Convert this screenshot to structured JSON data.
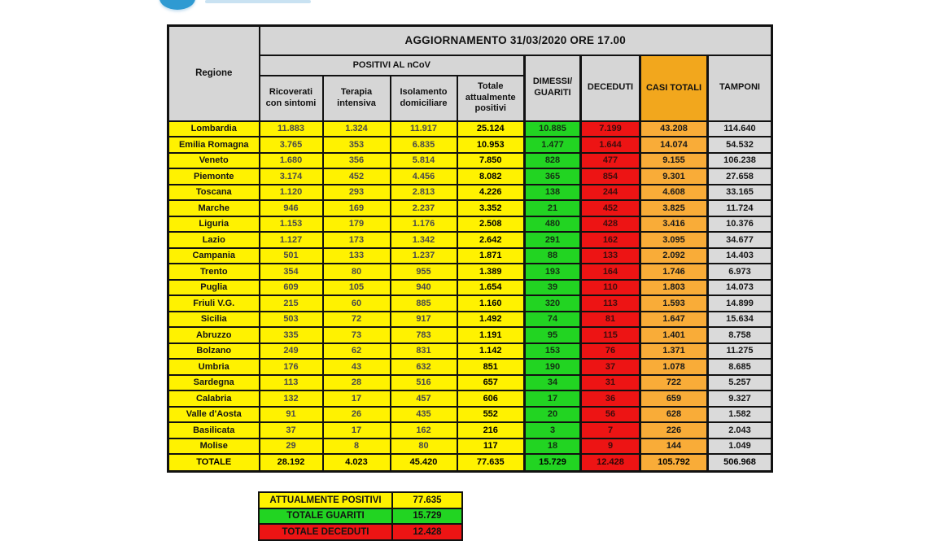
{
  "page": {
    "logo_icon": "blue-circle-logo-cropped"
  },
  "colors": {
    "yellow": "#FFF200",
    "green": "#22D422",
    "red": "#ED1414",
    "orange_header": "#F2A71D",
    "orange_cell": "#F9AC38",
    "header_gray": "#D6D6D6",
    "tamponi_gray": "#DADADA",
    "border": "#111111",
    "logo_blue": "#2F9AD2",
    "background": "#FFFFFF"
  },
  "chart_data": {
    "type": "table",
    "title": "AGGIORNAMENTO 31/03/2020 ORE 17.00",
    "region_header": "Regione",
    "group_header": "POSITIVI AL nCoV",
    "columns": [
      "Ricoverati con sintomi",
      "Terapia intensiva",
      "Isolamento domiciliare",
      "Totale attualmente positivi",
      "DIMESSI/ GUARITI",
      "DECEDUTI",
      "CASI TOTALI",
      "TAMPONI"
    ],
    "rows": [
      {
        "region": "Lombardia",
        "values": [
          "11.883",
          "1.324",
          "11.917",
          "25.124",
          "10.885",
          "7.199",
          "43.208",
          "114.640"
        ]
      },
      {
        "region": "Emilia Romagna",
        "values": [
          "3.765",
          "353",
          "6.835",
          "10.953",
          "1.477",
          "1.644",
          "14.074",
          "54.532"
        ]
      },
      {
        "region": "Veneto",
        "values": [
          "1.680",
          "356",
          "5.814",
          "7.850",
          "828",
          "477",
          "9.155",
          "106.238"
        ]
      },
      {
        "region": "Piemonte",
        "values": [
          "3.174",
          "452",
          "4.456",
          "8.082",
          "365",
          "854",
          "9.301",
          "27.658"
        ]
      },
      {
        "region": "Toscana",
        "values": [
          "1.120",
          "293",
          "2.813",
          "4.226",
          "138",
          "244",
          "4.608",
          "33.165"
        ]
      },
      {
        "region": "Marche",
        "values": [
          "946",
          "169",
          "2.237",
          "3.352",
          "21",
          "452",
          "3.825",
          "11.724"
        ]
      },
      {
        "region": "Liguria",
        "values": [
          "1.153",
          "179",
          "1.176",
          "2.508",
          "480",
          "428",
          "3.416",
          "10.376"
        ]
      },
      {
        "region": "Lazio",
        "values": [
          "1.127",
          "173",
          "1.342",
          "2.642",
          "291",
          "162",
          "3.095",
          "34.677"
        ]
      },
      {
        "region": "Campania",
        "values": [
          "501",
          "133",
          "1.237",
          "1.871",
          "88",
          "133",
          "2.092",
          "14.403"
        ]
      },
      {
        "region": "Trento",
        "values": [
          "354",
          "80",
          "955",
          "1.389",
          "193",
          "164",
          "1.746",
          "6.973"
        ]
      },
      {
        "region": "Puglia",
        "values": [
          "609",
          "105",
          "940",
          "1.654",
          "39",
          "110",
          "1.803",
          "14.073"
        ]
      },
      {
        "region": "Friuli V.G.",
        "values": [
          "215",
          "60",
          "885",
          "1.160",
          "320",
          "113",
          "1.593",
          "14.899"
        ]
      },
      {
        "region": "Sicilia",
        "values": [
          "503",
          "72",
          "917",
          "1.492",
          "74",
          "81",
          "1.647",
          "15.634"
        ]
      },
      {
        "region": "Abruzzo",
        "values": [
          "335",
          "73",
          "783",
          "1.191",
          "95",
          "115",
          "1.401",
          "8.758"
        ]
      },
      {
        "region": "Bolzano",
        "values": [
          "249",
          "62",
          "831",
          "1.142",
          "153",
          "76",
          "1.371",
          "11.275"
        ]
      },
      {
        "region": "Umbria",
        "values": [
          "176",
          "43",
          "632",
          "851",
          "190",
          "37",
          "1.078",
          "8.685"
        ]
      },
      {
        "region": "Sardegna",
        "values": [
          "113",
          "28",
          "516",
          "657",
          "34",
          "31",
          "722",
          "5.257"
        ]
      },
      {
        "region": "Calabria",
        "values": [
          "132",
          "17",
          "457",
          "606",
          "17",
          "36",
          "659",
          "9.327"
        ]
      },
      {
        "region": "Valle d'Aosta",
        "values": [
          "91",
          "26",
          "435",
          "552",
          "20",
          "56",
          "628",
          "1.582"
        ]
      },
      {
        "region": "Basilicata",
        "values": [
          "37",
          "17",
          "162",
          "216",
          "3",
          "7",
          "226",
          "2.043"
        ]
      },
      {
        "region": "Molise",
        "values": [
          "29",
          "8",
          "80",
          "117",
          "18",
          "9",
          "144",
          "1.049"
        ]
      }
    ],
    "total_row": {
      "region": "TOTALE",
      "values": [
        "28.192",
        "4.023",
        "45.420",
        "77.635",
        "15.729",
        "12.428",
        "105.792",
        "506.968"
      ]
    },
    "summary": [
      {
        "label": "ATTUALMENTE POSITIVI",
        "value": "77.635",
        "color": "#FFF200"
      },
      {
        "label": "TOTALE GUARITI",
        "value": "15.729",
        "color": "#22D422"
      },
      {
        "label": "TOTALE DECEDUTI",
        "value": "12.428",
        "color": "#ED1414"
      }
    ]
  }
}
